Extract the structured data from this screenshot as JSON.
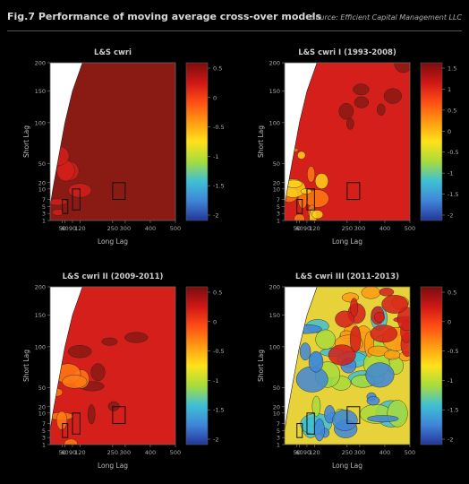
{
  "header": {
    "title": "Fig.7  Performance of moving average cross-over models",
    "source": "Source: Efficient Capital Management LLC"
  },
  "chart_data": [
    {
      "type": "heatmap",
      "title": "L&S cwri",
      "xlabel": "Long Lag",
      "ylabel": "Short Lag",
      "x_ticks": [
        50,
        60,
        90,
        120,
        250,
        300,
        400,
        500
      ],
      "y_ticks": [
        1,
        3,
        5,
        7,
        10,
        20,
        50,
        100,
        150,
        200
      ],
      "colorbar_ticks": [
        "0.5",
        "0",
        "-0.5",
        "-1",
        "-1.5",
        "-2"
      ],
      "boxes": [
        [
          50,
          60,
          3,
          7
        ],
        [
          90,
          120,
          4,
          10
        ],
        [
          250,
          300,
          7,
          20
        ]
      ]
    },
    {
      "type": "heatmap",
      "title": "L&S cwri I (1993-2008)",
      "xlabel": "Long Lag",
      "ylabel": "Short Lag",
      "x_ticks": [
        50,
        60,
        90,
        120,
        250,
        300,
        400,
        500
      ],
      "y_ticks": [
        1,
        3,
        5,
        7,
        10,
        20,
        50,
        100,
        150,
        200
      ],
      "colorbar_ticks": [
        "1.5",
        "1",
        "0.5",
        "0",
        "-0.5",
        "-1",
        "-1.5",
        "-2"
      ],
      "boxes": [
        [
          50,
          60,
          3,
          7
        ],
        [
          90,
          120,
          4,
          10
        ],
        [
          250,
          300,
          7,
          20
        ]
      ]
    },
    {
      "type": "heatmap",
      "title": "L&S cwri II (2009-2011)",
      "xlabel": "Long Lag",
      "ylabel": "Short Lag",
      "x_ticks": [
        50,
        60,
        90,
        120,
        250,
        300,
        400,
        500
      ],
      "y_ticks": [
        1,
        3,
        5,
        7,
        10,
        20,
        50,
        100,
        150,
        200
      ],
      "colorbar_ticks": [
        "0.5",
        "0",
        "-0.5",
        "-1",
        "-1.5",
        "-2"
      ],
      "boxes": [
        [
          50,
          60,
          3,
          7
        ],
        [
          90,
          120,
          4,
          10
        ],
        [
          250,
          300,
          7,
          20
        ]
      ]
    },
    {
      "type": "heatmap",
      "title": "L&S cwri III (2011-2013)",
      "xlabel": "Long Lag",
      "ylabel": "Short Lag",
      "x_ticks": [
        50,
        60,
        90,
        120,
        250,
        300,
        400,
        500
      ],
      "y_ticks": [
        1,
        3,
        5,
        7,
        10,
        20,
        50,
        100,
        150,
        200
      ],
      "colorbar_ticks": [
        "0.5",
        "0",
        "-0.5",
        "-1",
        "-1.5",
        "-2"
      ],
      "boxes": [
        [
          50,
          60,
          3,
          7
        ],
        [
          90,
          120,
          4,
          10
        ],
        [
          250,
          300,
          7,
          20
        ]
      ]
    }
  ],
  "colors": {
    "dark_red": "#8a1a14",
    "red": "#d41f1a",
    "colormap": [
      "#7a0d0d",
      "#cf1717",
      "#ff4e14",
      "#ff9a12",
      "#ffe21a",
      "#a8dc3c",
      "#3fc0d4",
      "#3f86d8",
      "#24359a"
    ]
  }
}
